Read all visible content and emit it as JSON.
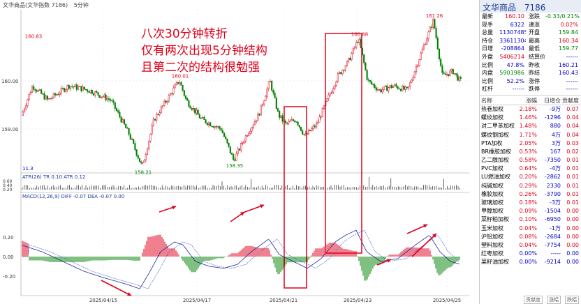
{
  "topbar": {
    "title": "文华商品(文华指数 7186)",
    "period": "5分钟"
  },
  "main": {
    "yticks": [
      "160.00",
      "159.00"
    ],
    "peak_labels": [
      "160.83",
      "160.01",
      "160.88",
      "161.26"
    ],
    "trough_labels": [
      "158.21",
      "158.35"
    ],
    "annotation": [
      "八次30分钟转折",
      "仅有两次出现5分钟结构",
      "且第二次的结构很勉强"
    ],
    "vol_label": "11.3"
  },
  "atr": {
    "legend": "ATR(26)   TR 0.10   ATR 0.12",
    "yticks": [
      "0.60",
      "0.40",
      "0.20"
    ]
  },
  "macd": {
    "legend": "MACD(12,26,9)   DIFF -0.07   DEA -0.07   0.00",
    "yticks": [
      "0.20",
      "0.00",
      "-0.20"
    ]
  },
  "xaxis": {
    "labels": [
      "2025/04/15",
      "2025/04/17",
      "2025/04/21",
      "2025/04/23",
      "2025/04/25"
    ]
  },
  "panel": {
    "title": "文华商品",
    "code": "7186",
    "quote": [
      {
        "l1": "最新",
        "v1": "160.10",
        "c1": "red",
        "l2": "涨跌",
        "v2": "-0.33/0.21%",
        "c2": "green"
      },
      {
        "l1": "现手",
        "v1": "6322",
        "c1": "blue",
        "l2": "速涨",
        "v2": "0.02%",
        "c2": "red"
      },
      {
        "l1": "总量",
        "v1": "11307485",
        "c1": "blue",
        "l2": "开盘",
        "v2": "159.84",
        "c2": "green"
      },
      {
        "l1": "持仓",
        "v1": "33611304",
        "c1": "blue",
        "l2": "最高",
        "v2": "160.34",
        "c2": "red"
      },
      {
        "l1": "日增",
        "v1": "-208864",
        "c1": "blue",
        "l2": "最低",
        "v2": "159.77",
        "c2": "green"
      },
      {
        "l1": "外盘",
        "v1": "5406214",
        "c1": "red",
        "l2": "结算价",
        "v2": "------",
        "c2": "blue"
      },
      {
        "l1": "比例",
        "v1": "47.8%",
        "c1": "blue",
        "l2": "昨收",
        "v2": "160.21",
        "c2": "blue"
      },
      {
        "l1": "内盘",
        "v1": "5901986",
        "c1": "green",
        "l2": "昨结",
        "v2": "160.43",
        "c2": "blue"
      },
      {
        "l1": "比例",
        "v1": "52.2%",
        "c1": "blue",
        "l2": "涨停",
        "v2": "------",
        "c2": "blue"
      },
      {
        "l1": "杠杆",
        "v1": "------",
        "c1": "blue",
        "l2": "跌停",
        "v2": "------",
        "c2": "blue"
      }
    ],
    "list_header": [
      "名称",
      "涨幅",
      "日增仓",
      "贡献度"
    ],
    "list": [
      {
        "name": "热卷加权",
        "chg": "2.18%",
        "chgc": "red",
        "oi": "-9万",
        "oic": "blue",
        "contrib": "0.07",
        "cc": "red"
      },
      {
        "name": "螺纹加权",
        "chg": "1.46%",
        "chgc": "red",
        "oi": "-1296",
        "oic": "blue",
        "contrib": "0.04",
        "cc": "red"
      },
      {
        "name": "对二甲苯加权",
        "chg": "1.48%",
        "chgc": "red",
        "oi": "880",
        "oic": "blue",
        "contrib": "0.04",
        "cc": "red"
      },
      {
        "name": "螺纹钢加权",
        "chg": "1.71%",
        "chgc": "red",
        "oi": "4万",
        "oic": "blue",
        "contrib": "0.04",
        "cc": "red"
      },
      {
        "name": "PTA加权",
        "chg": "2.05%",
        "chgc": "red",
        "oi": "3万",
        "oic": "blue",
        "contrib": "0.03",
        "cc": "red"
      },
      {
        "name": "BR橡胶加权",
        "chg": "0.53%",
        "chgc": "red",
        "oi": "167",
        "oic": "blue",
        "contrib": "0.02",
        "cc": "red"
      },
      {
        "name": "乙二醇加权",
        "chg": "0.58%",
        "chgc": "red",
        "oi": "-7350",
        "oic": "blue",
        "contrib": "0.01",
        "cc": "red"
      },
      {
        "name": "PVC加权",
        "chg": "0.64%",
        "chgc": "red",
        "oi": "-4万",
        "oic": "blue",
        "contrib": "0.01",
        "cc": "red"
      },
      {
        "name": "LU燃油加权",
        "chg": "0.20%",
        "chgc": "red",
        "oi": "-2862",
        "oic": "blue",
        "contrib": "0.01",
        "cc": "red"
      },
      {
        "name": "纯碱加权",
        "chg": "0.29%",
        "chgc": "red",
        "oi": "2330",
        "oic": "blue",
        "contrib": "0.01",
        "cc": "red"
      },
      {
        "name": "橡胶加权",
        "chg": "0.26%",
        "chgc": "red",
        "oi": "-3790",
        "oic": "blue",
        "contrib": "0.01",
        "cc": "red"
      },
      {
        "name": "玻璃加权",
        "chg": "0.18%",
        "chgc": "red",
        "oi": "-3万",
        "oic": "blue",
        "contrib": "0.01",
        "cc": "red"
      },
      {
        "name": "甲醇加权",
        "chg": "0.09%",
        "chgc": "red",
        "oi": "-1504",
        "oic": "blue",
        "contrib": "0.00",
        "cc": "red"
      },
      {
        "name": "菜籽粕加权",
        "chg": "0.10%",
        "chgc": "red",
        "oi": "-6950",
        "oic": "blue",
        "contrib": "0.00",
        "cc": "red"
      },
      {
        "name": "玉米加权",
        "chg": "0.04%",
        "chgc": "red",
        "oi": "-1万",
        "oic": "blue",
        "contrib": "0.00",
        "cc": "red"
      },
      {
        "name": "沪铝加权",
        "chg": "0.08%",
        "chgc": "red",
        "oi": "-2684",
        "oic": "blue",
        "contrib": "0.00",
        "cc": "red"
      },
      {
        "name": "塑料加权",
        "chg": "0.04%",
        "chgc": "red",
        "oi": "-7754",
        "oic": "blue",
        "contrib": "0.00",
        "cc": "red"
      },
      {
        "name": "红枣加权",
        "chg": "0.00%",
        "chgc": "blue",
        "oi": "-----",
        "oic": "blue",
        "contrib": "0.00",
        "cc": "blue"
      },
      {
        "name": "菜籽油加权",
        "chg": "0.00%",
        "chgc": "blue",
        "oi": "-9214",
        "oic": "blue",
        "contrib": "0.00",
        "cc": "blue"
      }
    ],
    "tabs": [
      "贡献度",
      "涨幅",
      "跌幅"
    ]
  },
  "colors": {
    "up": "#e0001b",
    "down": "#008000",
    "annotation": "#e0001b",
    "diff": "#1a2a9c",
    "dea": "#4a6ad0"
  }
}
